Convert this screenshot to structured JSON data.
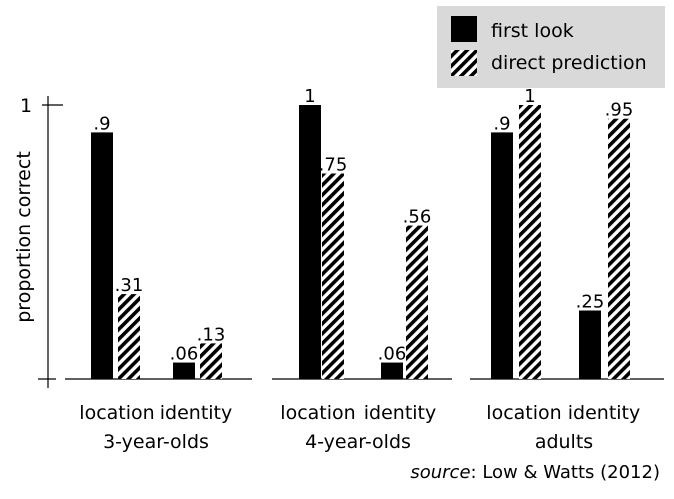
{
  "chart_data": {
    "type": "bar",
    "ylabel": "proportion correct",
    "ytick_labels": [
      "1"
    ],
    "ylim": [
      0,
      1
    ],
    "groups": [
      {
        "label": "3-year-olds",
        "categories": [
          "location",
          "identity"
        ]
      },
      {
        "label": "4-year-olds",
        "categories": [
          "location",
          "identity"
        ]
      },
      {
        "label": "adults",
        "categories": [
          "location",
          "identity"
        ]
      }
    ],
    "series": [
      {
        "name": "first look",
        "pattern": "solid",
        "values": [
          [
            0.9,
            0.06
          ],
          [
            1,
            0.06
          ],
          [
            0.9,
            0.25
          ]
        ],
        "value_labels": [
          [
            ".9",
            ".06"
          ],
          [
            "1",
            ".06"
          ],
          [
            ".9",
            ".25"
          ]
        ]
      },
      {
        "name": "direct prediction",
        "pattern": "diagonal-hatch",
        "values": [
          [
            0.31,
            0.13
          ],
          [
            0.75,
            0.56
          ],
          [
            1,
            0.95
          ]
        ],
        "value_labels": [
          [
            ".31",
            ".13"
          ],
          [
            ".75",
            ".56"
          ],
          [
            "1",
            ".95"
          ]
        ]
      }
    ],
    "legend_position": "top-right",
    "source_prefix": "source",
    "source_text": ": Low & Watts (2012)",
    "colors": {
      "bar": "#000000",
      "legend_bg": "#d9d9d9",
      "background": "#ffffff"
    }
  }
}
